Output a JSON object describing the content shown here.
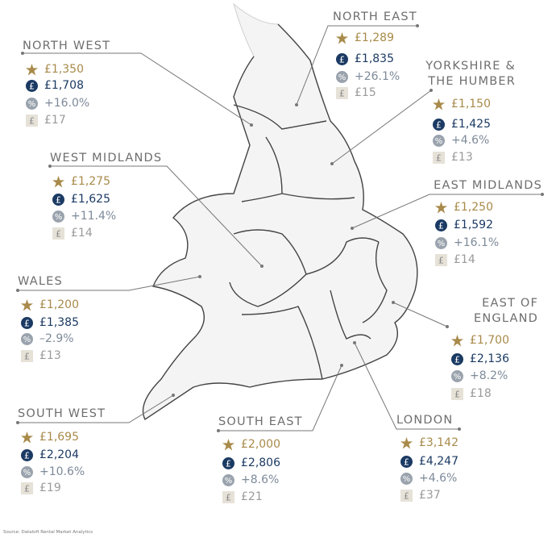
{
  "regions": [
    {
      "name": [
        "NORTH WEST"
      ],
      "star": "£1,350",
      "pound": "£1,708",
      "percent": "+16.0%",
      "square": "£17"
    },
    {
      "name": [
        "NORTH EAST"
      ],
      "star": "£1,289",
      "pound": "£1,835",
      "percent": "+26.1%",
      "square": "£15"
    },
    {
      "name": [
        "YORKSHIRE &",
        "THE HUMBER"
      ],
      "star": "£1,150",
      "pound": "£1,425",
      "percent": "+4.6%",
      "square": "£13"
    },
    {
      "name": [
        "WEST MIDLANDS"
      ],
      "star": "£1,275",
      "pound": "£1,625",
      "percent": "+11.4%",
      "square": "£14"
    },
    {
      "name": [
        "EAST MIDLANDS"
      ],
      "star": "£1,250",
      "pound": "£1,592",
      "percent": "+16.1%",
      "square": "£14"
    },
    {
      "name": [
        "WALES"
      ],
      "star": "£1,200",
      "pound": "£1,385",
      "percent": "–2.9%",
      "square": "£13"
    },
    {
      "name": [
        "EAST OF",
        "ENGLAND"
      ],
      "star": "£1,700",
      "pound": "£2,136",
      "percent": "+8.2%",
      "square": "£18"
    },
    {
      "name": [
        "SOUTH WEST"
      ],
      "star": "£1,695",
      "pound": "£2,204",
      "percent": "+10.6%",
      "square": "£19"
    },
    {
      "name": [
        "SOUTH EAST"
      ],
      "star": "£2,000",
      "pound": "£2,806",
      "percent": "+8.6%",
      "square": "£21"
    },
    {
      "name": [
        "LONDON"
      ],
      "star": "£3,142",
      "pound": "£4,247",
      "percent": "+4.6%",
      "square": "£37"
    }
  ],
  "source": "Source: Dataloft Rental Market Analytics"
}
